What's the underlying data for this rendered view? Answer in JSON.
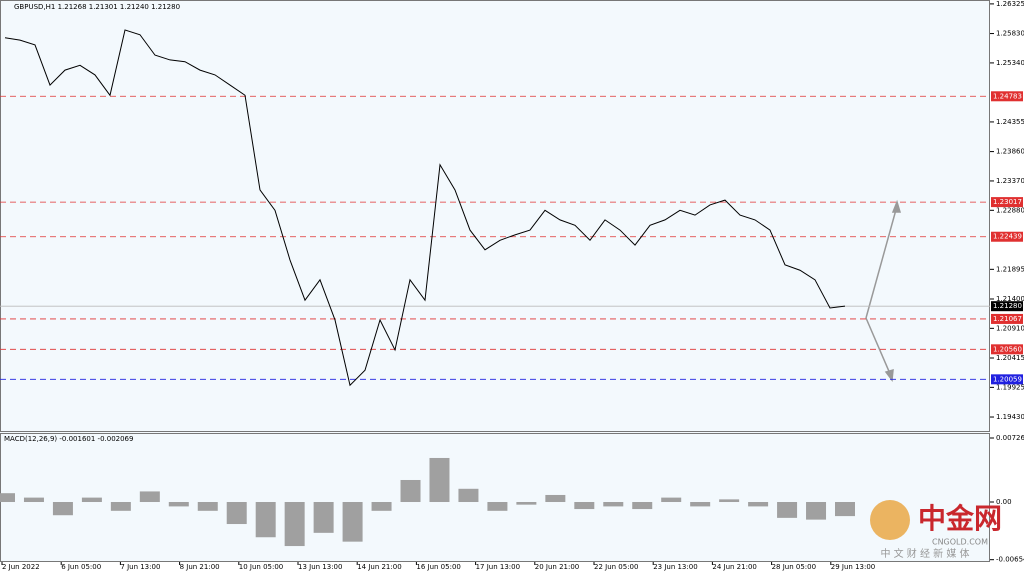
{
  "chart_data": {
    "type": "line",
    "title": "GBPUSD,H1  1.21268 1.21301 1.21240 1.21280",
    "color": "#000000",
    "values": [
      1.2576,
      1.2572,
      1.2564,
      1.2497,
      1.2522,
      1.253,
      1.2514,
      1.248,
      1.2589,
      1.2581,
      1.2547,
      1.2539,
      1.2536,
      1.2522,
      1.2514,
      1.2497,
      1.248,
      1.2322,
      1.2288,
      1.2205,
      1.2138,
      1.2172,
      1.2105,
      1.1996,
      1.2021,
      1.2105,
      1.2055,
      1.2172,
      1.2138,
      1.2364,
      1.2322,
      1.2255,
      1.2222,
      1.2238,
      1.2247,
      1.2255,
      1.2288,
      1.2272,
      1.2263,
      1.2238,
      1.2272,
      1.2255,
      1.223,
      1.2263,
      1.2272,
      1.2288,
      1.228,
      1.2297,
      1.2305,
      1.228,
      1.2272,
      1.2255,
      1.2197,
      1.2188,
      1.2172,
      1.2125,
      1.2128
    ],
    "ylim": [
      1.1918,
      1.2639
    ],
    "yticks": [
      1.26325,
      {
        "value": 1.2583,
        "label": "1.25830"
      },
      {
        "value": 1.2534,
        "label": "1.25340"
      },
      1.24355,
      {
        "value": 1.2386,
        "label": "1.23860"
      },
      {
        "value": 1.2337,
        "label": "1.23370"
      },
      {
        "value": 1.2288,
        "label": "1.22880"
      },
      1.21895,
      {
        "value": 1.214,
        "label": "1.21400"
      },
      {
        "value": 1.2091,
        "label": "1.20910"
      },
      1.20415,
      1.19925,
      {
        "value": 1.1943,
        "label": "1.19430"
      }
    ],
    "levels": [
      {
        "value": 1.24783,
        "color": "#e03030"
      },
      {
        "value": 1.23017,
        "color": "#e03030"
      },
      {
        "value": 1.22439,
        "color": "#e03030"
      },
      {
        "value": 1.21067,
        "color": "#e03030"
      },
      {
        "value": 1.2056,
        "label": "1.20560",
        "color": "#e03030"
      },
      {
        "value": 1.20059,
        "color": "#2020e0"
      }
    ],
    "current": {
      "value": 1.2128,
      "label": "1.21280"
    },
    "x_labels": [
      "2 Jun 2022",
      "6 Jun 05:00",
      "7 Jun 13:00",
      "8 Jun 21:00",
      "10 Jun 05:00",
      "13 Jun 13:00",
      "14 Jun 21:00",
      "16 Jun 05:00",
      "17 Jun 13:00",
      "20 Jun 21:00",
      "22 Jun 05:00",
      "23 Jun 13:00",
      "24 Jun 21:00",
      "28 Jun 05:00",
      "29 Jun 13:00"
    ],
    "macd": {
      "title": "MACD(12,26,9) -0.001601 -0.002069",
      "values": [
        0.001,
        0.0005,
        -0.0015,
        0.0005,
        -0.001,
        0.0012,
        -0.0005,
        -0.001,
        -0.0025,
        -0.004,
        -0.005,
        -0.0035,
        -0.0045,
        -0.001,
        0.0025,
        0.005,
        0.0015,
        -0.001,
        -0.0003,
        0.0008,
        -0.0008,
        -0.0005,
        -0.0008,
        0.0005,
        -0.0005,
        0.0003,
        -0.0005,
        -0.0018,
        -0.002,
        -0.0016
      ],
      "color": "#a0a0a0",
      "ylim": [
        -0.00681,
        0.00772
      ],
      "yticks": [
        0.007266,
        {
          "value": 0,
          "label": "0.00"
        },
        -0.006547
      ]
    },
    "watermark": {
      "brand": "中金网",
      "site": "CNGOLD.COM",
      "slogan": "中 文 财 经 新 媒 体"
    }
  }
}
